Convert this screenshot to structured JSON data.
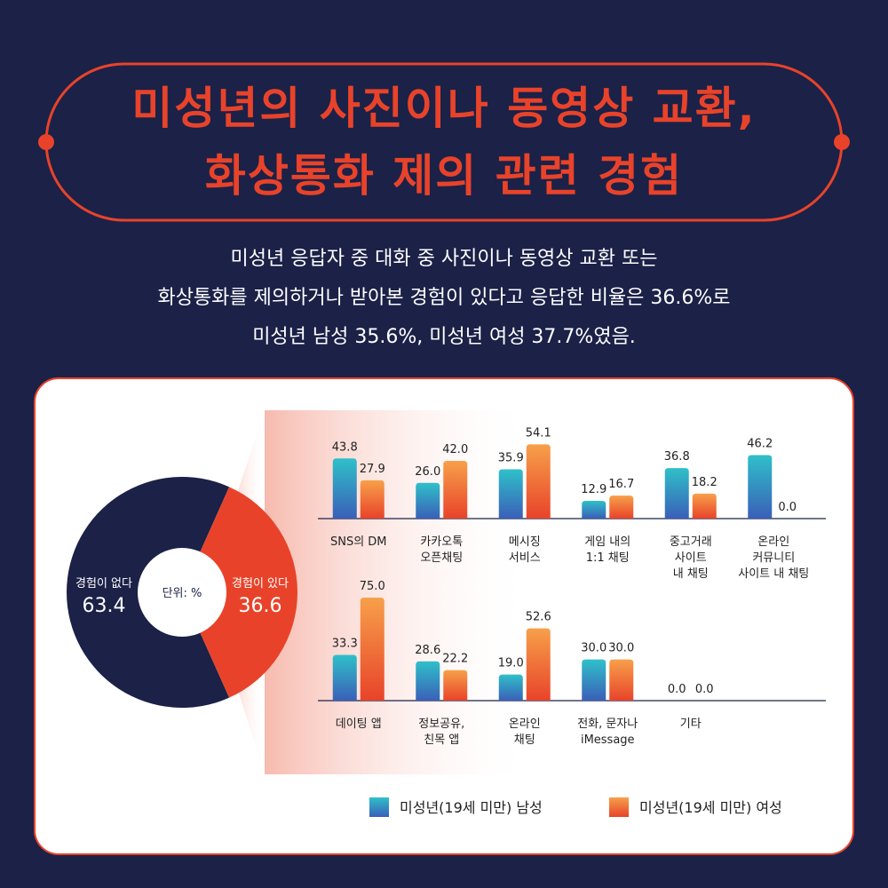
{
  "title": {
    "line1": "미성년의 사진이나 동영상 교환,",
    "line2": "화상통화 제의 관련 경험"
  },
  "subtitle": {
    "line1": "미성년 응답자 중 대화 중 사진이나 동영상 교환 또는",
    "line2": "화상통화를 제의하거나 받아본 경험이 있다고 응답한 비율은 36.6%로",
    "line3": "미성년 남성 35.6%, 미성년 여성 37.7%였음."
  },
  "colors": {
    "navy": "#1b2147",
    "accent": "#e8432a",
    "male_top": "#2fc0c9",
    "male_bottom": "#3a5fb8",
    "female_top": "#f7a04a",
    "female_bottom": "#e8432a"
  },
  "chart_data": [
    {
      "type": "pie",
      "center_label": "단위: %",
      "slices": [
        {
          "label": "경험이 없다",
          "value": 63.4,
          "value_text": "63.4",
          "color": "#1b2147"
        },
        {
          "label": "경험이 있다",
          "value": 36.6,
          "value_text": "36.6",
          "color": "#e8432a"
        }
      ]
    },
    {
      "type": "bar",
      "series": [
        {
          "name": "미성년(19세 미만) 남성"
        },
        {
          "name": "미성년(19세 미만) 여성"
        }
      ],
      "ylim": [
        0,
        75
      ],
      "rows": [
        [
          {
            "label": [
              "SNS의 DM"
            ],
            "values": [
              43.8,
              27.9
            ],
            "texts": [
              "43.8",
              "27.9"
            ]
          },
          {
            "label": [
              "카카오톡",
              "오픈채팅"
            ],
            "values": [
              26.0,
              42.0
            ],
            "texts": [
              "26.0",
              "42.0"
            ]
          },
          {
            "label": [
              "메시징",
              "서비스"
            ],
            "values": [
              35.9,
              54.1
            ],
            "texts": [
              "35.9",
              "54.1"
            ]
          },
          {
            "label": [
              "게임 내의",
              "1:1 채팅"
            ],
            "values": [
              12.9,
              16.7
            ],
            "texts": [
              "12.9",
              "16.7"
            ]
          },
          {
            "label": [
              "중고거래",
              "사이트",
              "내 채팅"
            ],
            "values": [
              36.8,
              18.2
            ],
            "texts": [
              "36.8",
              "18.2"
            ]
          },
          {
            "label": [
              "온라인",
              "커뮤니티",
              "사이트 내 채팅"
            ],
            "values": [
              46.2,
              0.0
            ],
            "texts": [
              "46.2",
              "0.0"
            ]
          }
        ],
        [
          {
            "label": [
              "데이팅 앱"
            ],
            "values": [
              33.3,
              75.0
            ],
            "texts": [
              "33.3",
              "75.0"
            ]
          },
          {
            "label": [
              "정보공유,",
              "친목 앱"
            ],
            "values": [
              28.6,
              22.2
            ],
            "texts": [
              "28.6",
              "22.2"
            ]
          },
          {
            "label": [
              "온라인",
              "채팅"
            ],
            "values": [
              19.0,
              52.6
            ],
            "texts": [
              "19.0",
              "52.6"
            ]
          },
          {
            "label": [
              "전화, 문자나",
              "iMessage"
            ],
            "values": [
              30.0,
              30.0
            ],
            "texts": [
              "30.0",
              "30.0"
            ]
          },
          {
            "label": [
              "기타"
            ],
            "values": [
              0.0,
              0.0
            ],
            "texts": [
              "0.0",
              "0.0"
            ]
          }
        ]
      ]
    }
  ]
}
